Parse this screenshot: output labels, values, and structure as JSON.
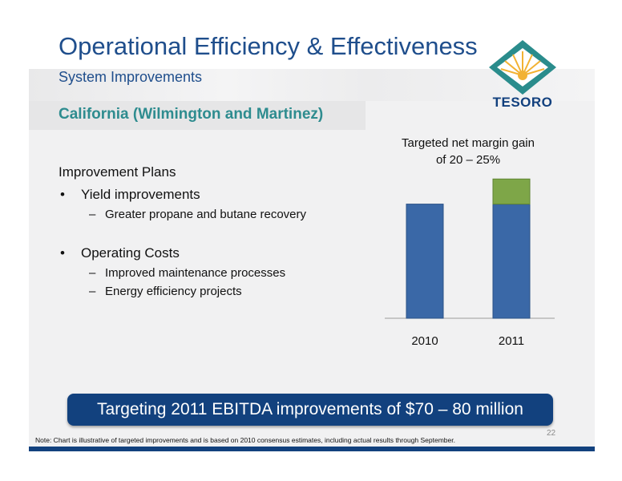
{
  "slide": {
    "title": "Operational Efficiency & Effectiveness",
    "subtitle": "System Improvements",
    "region": "California (Wilmington and Martinez)",
    "logo_text": "TESORO",
    "page_number": "22"
  },
  "plans": {
    "heading": "Improvement Plans",
    "bullet_symbol": "•",
    "dash_symbol": "–",
    "groups": [
      {
        "label": "Yield improvements",
        "items": [
          "Greater propane and butane recovery"
        ]
      },
      {
        "label": "Operating Costs",
        "items": [
          "Improved maintenance processes",
          "Energy efficiency projects"
        ]
      }
    ]
  },
  "chart_data": {
    "type": "bar",
    "title": "",
    "annotation": "Targeted net margin gain of 20 – 25%",
    "categories": [
      "2010",
      "2011"
    ],
    "series": [
      {
        "values": [
          100,
          100
        ],
        "color": "#3a68a7"
      },
      {
        "values": [
          0,
          22
        ],
        "color": "#7ea648"
      }
    ],
    "stacked": true,
    "ylim": [
      0,
      125
    ],
    "grid": false,
    "legend": "none"
  },
  "banner": {
    "text": "Targeting 2011 EBITDA improvements of $70 – 80 million"
  },
  "note": "Note:  Chart is illustrative of targeted improvements and is based on 2010 consensus estimates, including actual results through September.",
  "colors": {
    "title_blue": "#1f4e8c",
    "teal": "#2e8c8f",
    "navy": "#12417e",
    "bar_blue": "#3a68a7",
    "bar_green": "#7ea648"
  }
}
